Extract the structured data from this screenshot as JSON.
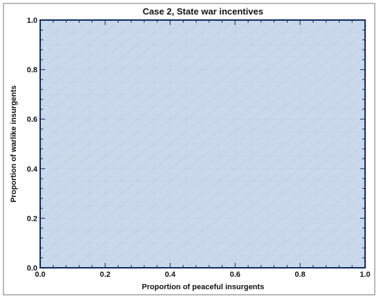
{
  "chart_data": {
    "type": "area",
    "title": "Case 2,  State war incentives",
    "xlabel": "Proportion of peaceful insurgents",
    "ylabel": "Proportion of warlike insurgents",
    "xlim": [
      0.0,
      1.0
    ],
    "ylim": [
      0.0,
      1.0
    ],
    "xticks": [
      "0.0",
      "0.2",
      "0.4",
      "0.6",
      "0.8",
      "1.0"
    ],
    "yticks": [
      "0.0",
      "0.2",
      "0.4",
      "0.6",
      "0.8",
      "1.0"
    ],
    "regions": [
      {
        "fill": "#c9d8ea",
        "polygon": [
          [
            0.0,
            0.0
          ],
          [
            1.0,
            0.0
          ],
          [
            1.0,
            1.0
          ],
          [
            0.0,
            1.0
          ]
        ]
      }
    ],
    "grid": true,
    "legend": "none"
  },
  "colors": {
    "region_fill": "#c9d8ea",
    "frame_line": "#0b2a5b",
    "grid_line": "#b5c7dc",
    "outer_border": "#b8b8b8"
  }
}
